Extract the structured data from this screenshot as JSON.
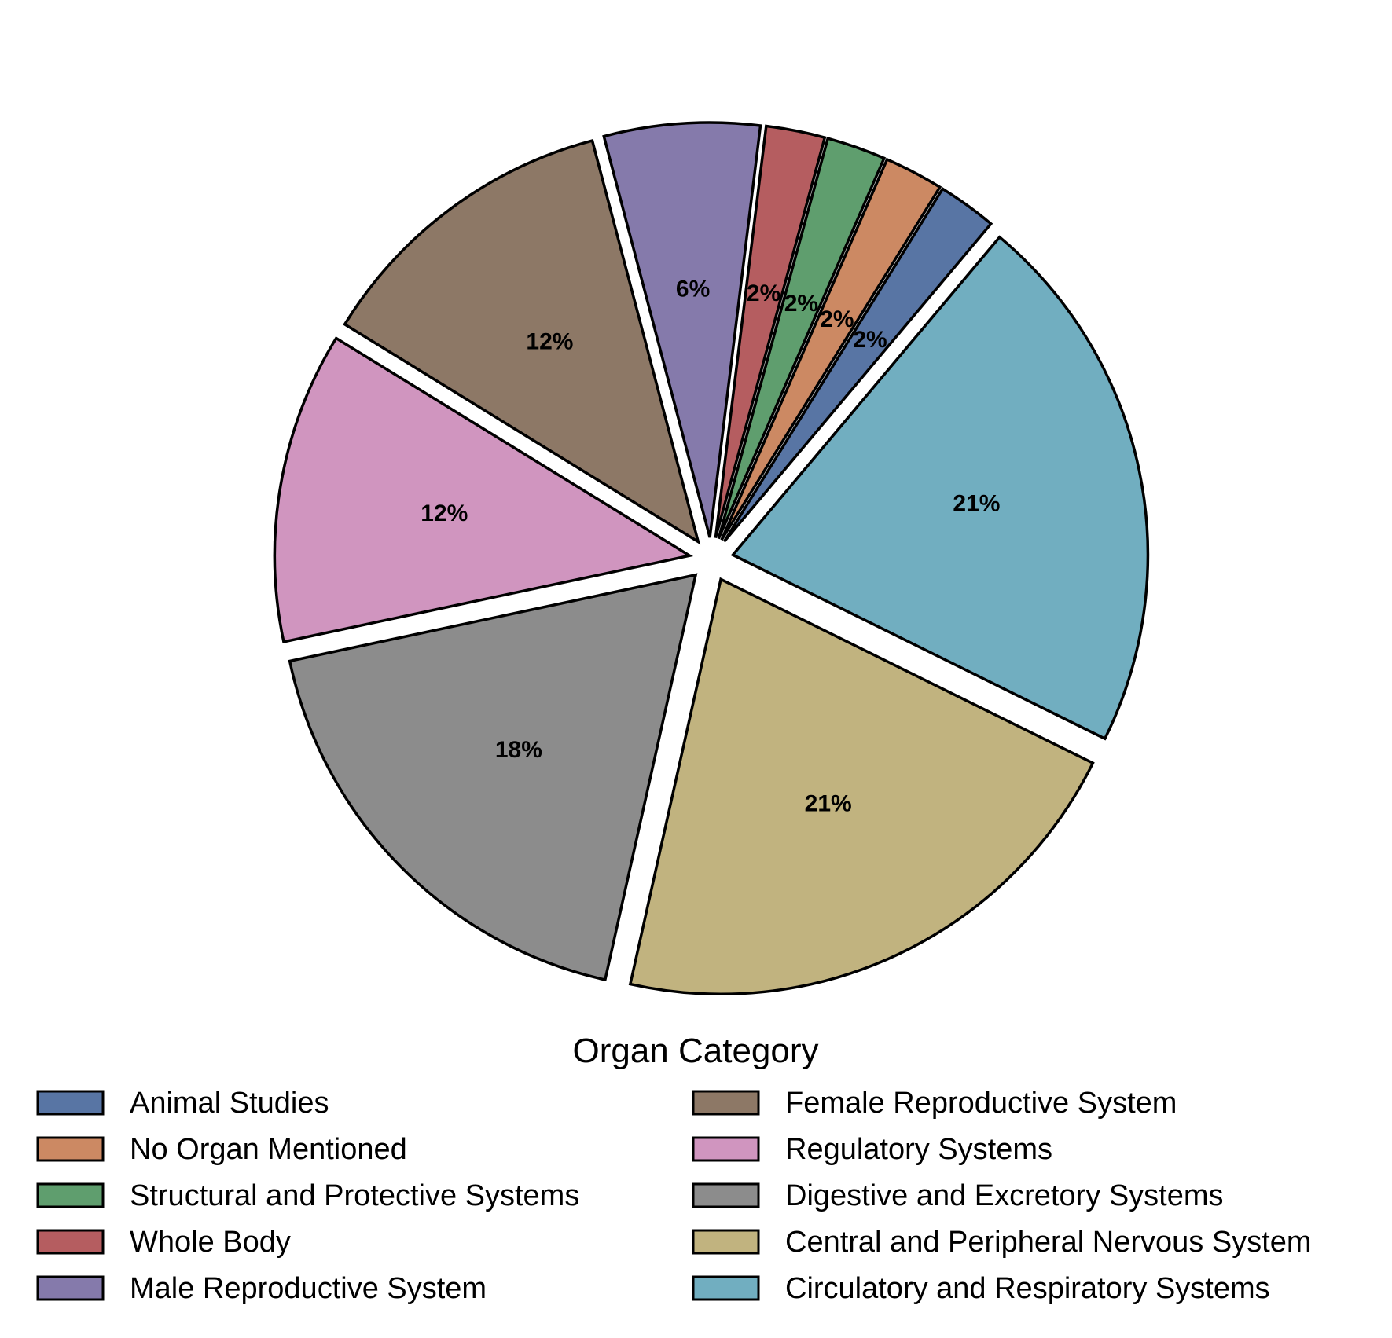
{
  "chart_data": {
    "type": "pie",
    "title": "",
    "legend_title": "Organ Category",
    "legend_placement": "bottom",
    "start_angle_deg": 50,
    "direction": "counterclockwise",
    "slices": [
      {
        "name": "Animal Studies",
        "percent": 2.27,
        "label": "2%",
        "color": "#5875a4"
      },
      {
        "name": "No Organ Mentioned",
        "percent": 2.27,
        "label": "2%",
        "color": "#cc8963"
      },
      {
        "name": "Structural and Protective Systems",
        "percent": 2.27,
        "label": "2%",
        "color": "#5f9e6e"
      },
      {
        "name": "Whole Body",
        "percent": 2.27,
        "label": "2%",
        "color": "#b55d60"
      },
      {
        "name": "Male Reproductive System",
        "percent": 6.0,
        "label": "6%",
        "color": "#857aab"
      },
      {
        "name": "Female Reproductive System",
        "percent": 12.0,
        "label": "12%",
        "color": "#8d7866"
      },
      {
        "name": "Regulatory Systems",
        "percent": 12.0,
        "label": "12%",
        "color": "#d095bf"
      },
      {
        "name": "Digestive and Excretory Systems",
        "percent": 18.0,
        "label": "18%",
        "color": "#8c8c8c"
      },
      {
        "name": "Central and Peripheral Nervous System",
        "percent": 21.0,
        "label": "21%",
        "color": "#c1b37f"
      },
      {
        "name": "Circulatory and Respiratory Systems",
        "percent": 21.0,
        "label": "21%",
        "color": "#71aec0"
      }
    ]
  }
}
